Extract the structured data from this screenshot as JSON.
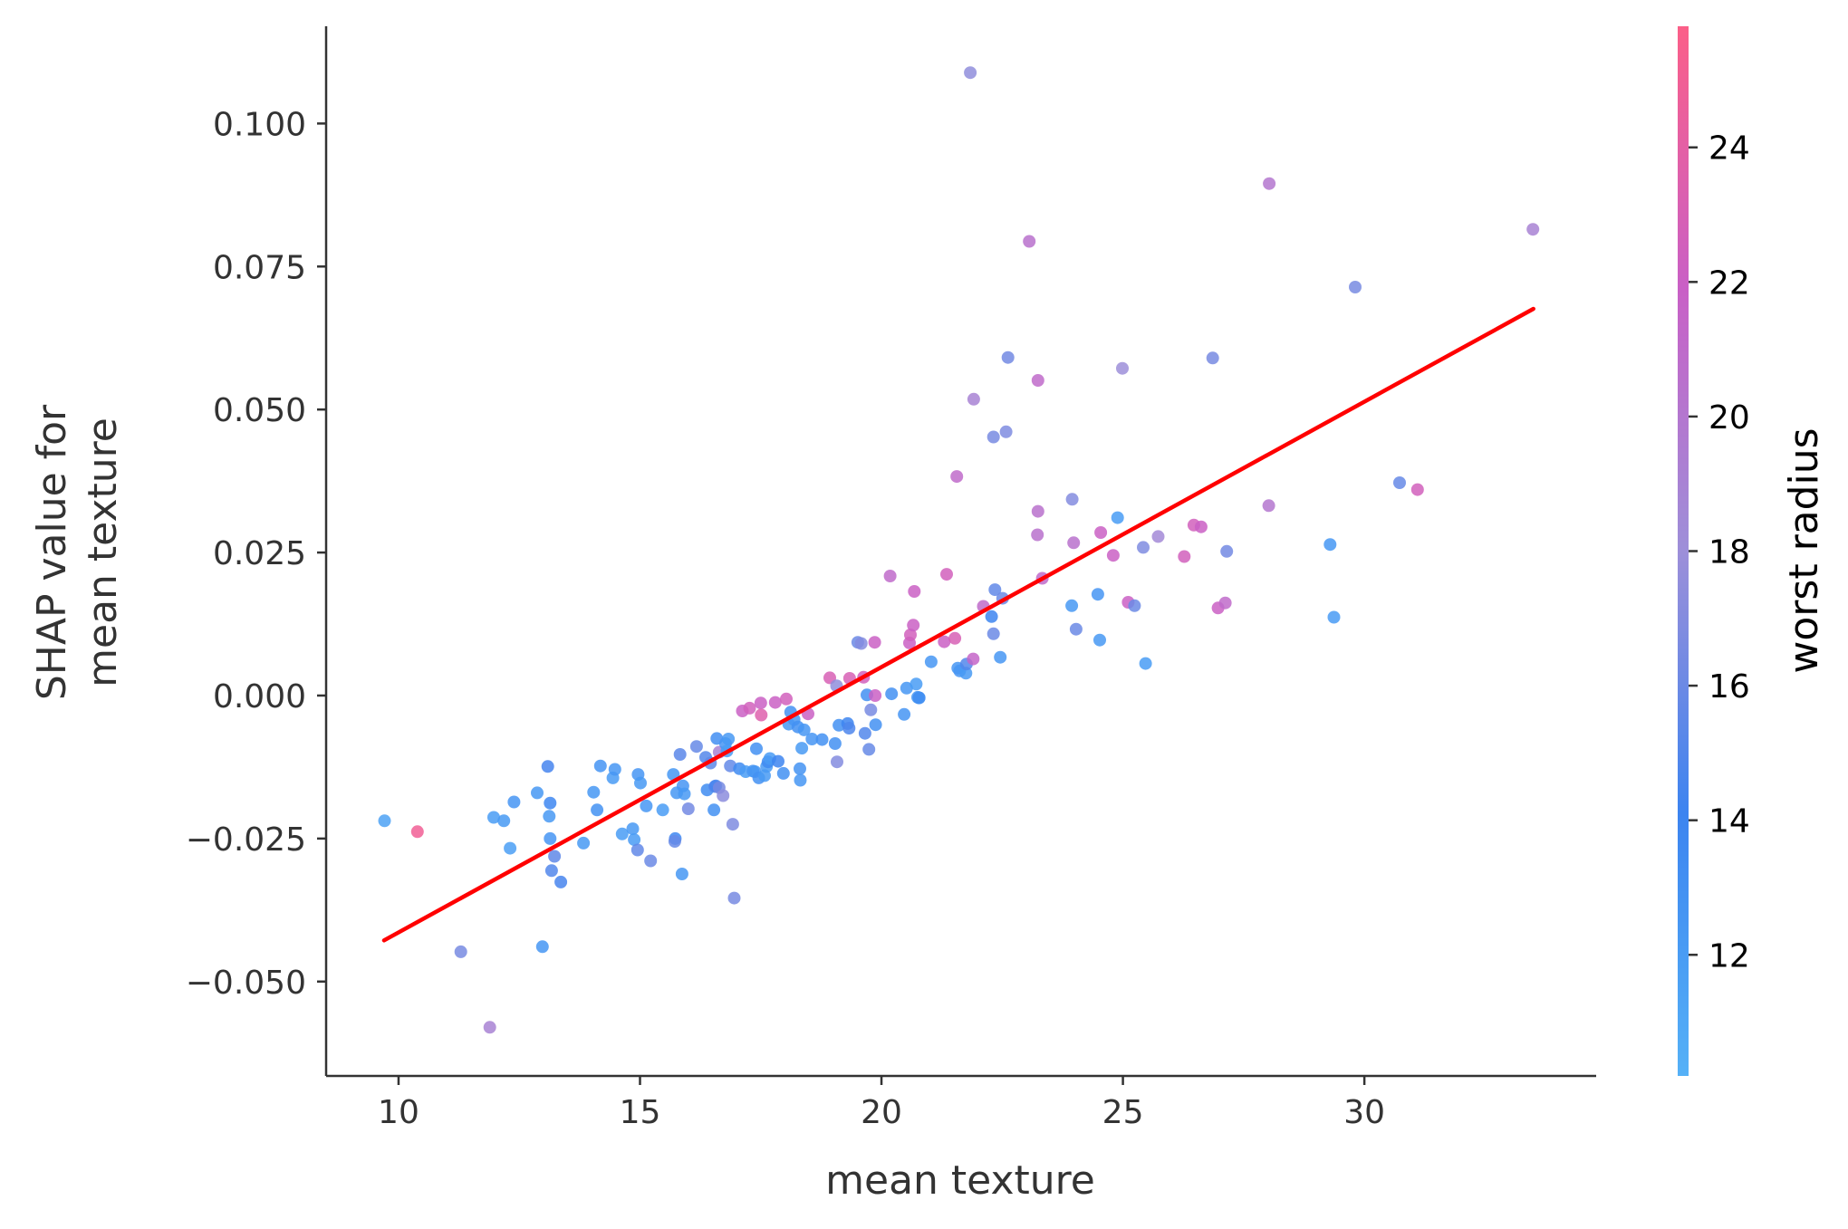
{
  "chart_data": {
    "type": "scatter",
    "xlabel": "mean texture",
    "ylabel_lines": [
      "SHAP value for",
      "mean texture"
    ],
    "colorbar_label": "worst radius",
    "xlim": [
      8.5,
      34.8
    ],
    "ylim": [
      -0.0665,
      0.117
    ],
    "xticks": [
      10,
      15,
      20,
      25,
      30
    ],
    "xtick_labels": [
      "10",
      "15",
      "20",
      "25",
      "30"
    ],
    "yticks": [
      -0.05,
      -0.025,
      0.0,
      0.025,
      0.05,
      0.075,
      0.1
    ],
    "ytick_labels": [
      "−0.050",
      "−0.025",
      "0.000",
      "0.025",
      "0.050",
      "0.075",
      "0.100"
    ],
    "colorbar_range": [
      10.2,
      25.8
    ],
    "colorbar_ticks": [
      12,
      14,
      16,
      18,
      20,
      22,
      24
    ],
    "colorbar_tick_labels": [
      "12",
      "14",
      "16",
      "18",
      "20",
      "22",
      "24"
    ],
    "colormap": [
      "#55b1f7",
      "#3c84f0",
      "#9d8fd9",
      "#c960c6",
      "#fb5f88"
    ],
    "trend_line": {
      "x": [
        9.7,
        33.5
      ],
      "y": [
        -0.0428,
        0.0676
      ],
      "color": "#ff0000"
    },
    "points": [
      [
        9.71,
        -0.0219,
        11.5
      ],
      [
        10.39,
        -0.0238,
        25.0
      ],
      [
        11.29,
        -0.0448,
        16.5
      ],
      [
        11.89,
        -0.058,
        19.0
      ],
      [
        11.97,
        -0.0213,
        12.0
      ],
      [
        12.18,
        -0.0219,
        12.2
      ],
      [
        12.39,
        -0.0186,
        12.6
      ],
      [
        12.31,
        -0.0267,
        11.8
      ],
      [
        12.87,
        -0.017,
        12.4
      ],
      [
        13.09,
        -0.0124,
        14.5
      ],
      [
        13.12,
        -0.0211,
        12.3
      ],
      [
        13.14,
        -0.0188,
        13.8
      ],
      [
        13.14,
        -0.025,
        12.6
      ],
      [
        12.98,
        -0.0439,
        12.5
      ],
      [
        13.23,
        -0.0281,
        15.5
      ],
      [
        13.17,
        -0.0306,
        15.0
      ],
      [
        13.36,
        -0.0326,
        14.6
      ],
      [
        13.83,
        -0.0258,
        12.2
      ],
      [
        14.04,
        -0.0169,
        12.4
      ],
      [
        14.11,
        -0.02,
        12.9
      ],
      [
        14.18,
        -0.0123,
        12.7
      ],
      [
        14.44,
        -0.0144,
        12.1
      ],
      [
        14.48,
        -0.0129,
        12.5
      ],
      [
        14.63,
        -0.0242,
        12.0
      ],
      [
        14.85,
        -0.0233,
        12.3
      ],
      [
        14.88,
        -0.0252,
        12.1
      ],
      [
        14.96,
        -0.0138,
        12.6
      ],
      [
        15.01,
        -0.0153,
        12.3
      ],
      [
        15.13,
        -0.0193,
        12.5
      ],
      [
        14.95,
        -0.027,
        15.6
      ],
      [
        15.22,
        -0.0289,
        16.0
      ],
      [
        15.47,
        -0.02,
        12.0
      ],
      [
        15.69,
        -0.0138,
        12.4
      ],
      [
        15.73,
        -0.025,
        13.8
      ],
      [
        15.72,
        -0.0255,
        15.8
      ],
      [
        15.76,
        -0.017,
        12.4
      ],
      [
        15.83,
        -0.0103,
        15.3
      ],
      [
        15.89,
        -0.0158,
        12.6
      ],
      [
        15.92,
        -0.0172,
        12.3
      ],
      [
        15.87,
        -0.0312,
        12.4
      ],
      [
        16.0,
        -0.0198,
        16.3
      ],
      [
        16.17,
        -0.0089,
        15.8
      ],
      [
        16.36,
        -0.0108,
        15.1
      ],
      [
        16.39,
        -0.0165,
        13.4
      ],
      [
        16.46,
        -0.0118,
        15.5
      ],
      [
        16.53,
        -0.02,
        13.0
      ],
      [
        16.55,
        -0.0159,
        15.0
      ],
      [
        16.59,
        -0.0075,
        13.2
      ],
      [
        16.64,
        -0.0099,
        19.0
      ],
      [
        16.57,
        -0.0158,
        14.5
      ],
      [
        16.64,
        -0.0161,
        16.4
      ],
      [
        16.72,
        -0.0175,
        17.3
      ],
      [
        16.77,
        -0.0084,
        12.6
      ],
      [
        16.8,
        -0.0097,
        12.0
      ],
      [
        16.83,
        -0.0076,
        12.3
      ],
      [
        16.87,
        -0.0123,
        15.7
      ],
      [
        16.92,
        -0.0225,
        16.8
      ],
      [
        16.95,
        -0.0354,
        16.5
      ],
      [
        17.06,
        -0.0128,
        13.5
      ],
      [
        17.12,
        -0.0027,
        22.0
      ],
      [
        17.19,
        -0.0133,
        12.0
      ],
      [
        17.27,
        -0.0022,
        22.5
      ],
      [
        17.34,
        -0.0132,
        12.6
      ],
      [
        17.38,
        -0.0133,
        12.5
      ],
      [
        17.41,
        -0.0093,
        13.0
      ],
      [
        17.46,
        -0.0144,
        13.0
      ],
      [
        17.5,
        -0.0013,
        22.0
      ],
      [
        17.51,
        -0.0034,
        23.5
      ],
      [
        17.58,
        -0.014,
        12.2
      ],
      [
        17.62,
        -0.0124,
        12.2
      ],
      [
        17.65,
        -0.0116,
        13.5
      ],
      [
        17.69,
        -0.011,
        12.1
      ],
      [
        17.8,
        -0.0012,
        22.0
      ],
      [
        17.86,
        -0.0115,
        14.0
      ],
      [
        17.97,
        -0.0136,
        13.0
      ],
      [
        18.03,
        -0.0006,
        22.5
      ],
      [
        18.08,
        -0.005,
        12.3
      ],
      [
        18.12,
        -0.0029,
        12.9
      ],
      [
        18.19,
        -0.0042,
        12.6
      ],
      [
        18.27,
        -0.0055,
        13.0
      ],
      [
        18.31,
        -0.0128,
        12.8
      ],
      [
        18.32,
        -0.0148,
        12.5
      ],
      [
        18.35,
        -0.0092,
        12.2
      ],
      [
        18.4,
        -0.006,
        12.5
      ],
      [
        18.48,
        -0.0032,
        22.0
      ],
      [
        18.56,
        -0.0076,
        12.6
      ],
      [
        18.77,
        -0.0077,
        13.0
      ],
      [
        18.93,
        0.0031,
        23.0
      ],
      [
        19.04,
        -0.0084,
        13.0
      ],
      [
        19.07,
        0.0017,
        17.5
      ],
      [
        19.08,
        -0.0116,
        17.0
      ],
      [
        19.12,
        -0.0052,
        13.0
      ],
      [
        19.3,
        -0.0049,
        14.0
      ],
      [
        19.34,
        0.003,
        23.0
      ],
      [
        19.33,
        -0.0057,
        14.8
      ],
      [
        19.51,
        0.0093,
        16.0
      ],
      [
        19.58,
        0.0091,
        17.0
      ],
      [
        19.63,
        0.0032,
        22.5
      ],
      [
        19.66,
        -0.0066,
        15.0
      ],
      [
        19.7,
        0.0001,
        13.0
      ],
      [
        19.74,
        -0.0094,
        15.8
      ],
      [
        19.78,
        -0.0025,
        16.5
      ],
      [
        19.86,
        0.0093,
        22.0
      ],
      [
        19.88,
        -0.0051,
        13.0
      ],
      [
        19.87,
        0.0,
        22.0
      ],
      [
        20.18,
        0.0209,
        21.0
      ],
      [
        20.21,
        0.0003,
        13.0
      ],
      [
        20.47,
        -0.0033,
        12.6
      ],
      [
        20.52,
        0.0013,
        12.5
      ],
      [
        20.58,
        0.0092,
        22.0
      ],
      [
        20.6,
        0.0106,
        22.5
      ],
      [
        20.66,
        0.0123,
        22.0
      ],
      [
        20.68,
        0.0182,
        22.0
      ],
      [
        20.72,
        0.002,
        12.0
      ],
      [
        20.75,
        -0.0003,
        12.3
      ],
      [
        20.78,
        -0.0004,
        13.4
      ],
      [
        20.78,
        -0.0004,
        13.0
      ],
      [
        21.03,
        0.0059,
        12.5
      ],
      [
        21.3,
        0.0094,
        22.0
      ],
      [
        21.35,
        0.0212,
        22.5
      ],
      [
        21.52,
        0.01,
        23.0
      ],
      [
        21.56,
        0.0383,
        21.0
      ],
      [
        21.58,
        0.0048,
        12.5
      ],
      [
        21.62,
        0.0043,
        12.6
      ],
      [
        21.75,
        0.0039,
        12.2
      ],
      [
        21.76,
        0.0055,
        15.0
      ],
      [
        21.84,
        0.1089,
        17.5
      ],
      [
        21.9,
        0.0064,
        21.5
      ],
      [
        21.91,
        0.0518,
        19.0
      ],
      [
        22.11,
        0.0156,
        21.0
      ],
      [
        22.28,
        0.0138,
        14.0
      ],
      [
        22.32,
        0.0452,
        16.5
      ],
      [
        22.32,
        0.0108,
        16.0
      ],
      [
        22.35,
        0.0185,
        15.6
      ],
      [
        22.46,
        0.0067,
        12.5
      ],
      [
        22.51,
        0.017,
        16.0
      ],
      [
        22.58,
        0.0461,
        16.8
      ],
      [
        22.62,
        0.0591,
        16.3
      ],
      [
        23.06,
        0.0794,
        20.5
      ],
      [
        23.24,
        0.0551,
        21.0
      ],
      [
        23.23,
        0.0281,
        20.5
      ],
      [
        23.24,
        0.0322,
        20.5
      ],
      [
        23.33,
        0.0205,
        21.0
      ],
      [
        23.94,
        0.0157,
        12.3
      ],
      [
        23.95,
        0.0343,
        17.0
      ],
      [
        23.98,
        0.0267,
        20.5
      ],
      [
        24.03,
        0.0116,
        16.0
      ],
      [
        24.48,
        0.0177,
        12.6
      ],
      [
        24.52,
        0.0097,
        12.3
      ],
      [
        24.54,
        0.0285,
        22.0
      ],
      [
        24.8,
        0.0245,
        22.0
      ],
      [
        24.89,
        0.0311,
        12.0
      ],
      [
        24.99,
        0.0572,
        18.0
      ],
      [
        25.11,
        0.0163,
        22.0
      ],
      [
        25.24,
        0.0157,
        16.0
      ],
      [
        25.42,
        0.0259,
        16.8
      ],
      [
        25.47,
        0.0056,
        12.0
      ],
      [
        25.73,
        0.0278,
        18.5
      ],
      [
        26.27,
        0.0243,
        22.5
      ],
      [
        26.47,
        0.0298,
        22.5
      ],
      [
        26.62,
        0.0295,
        22.0
      ],
      [
        26.86,
        0.059,
        16.5
      ],
      [
        26.97,
        0.0153,
        22.0
      ],
      [
        27.12,
        0.0162,
        21.0
      ],
      [
        27.15,
        0.0252,
        16.3
      ],
      [
        28.03,
        0.0895,
        20.0
      ],
      [
        28.02,
        0.0332,
        20.0
      ],
      [
        29.29,
        0.0264,
        12.4
      ],
      [
        29.37,
        0.0137,
        12.1
      ],
      [
        29.81,
        0.0714,
        16.5
      ],
      [
        30.73,
        0.0372,
        15.8
      ],
      [
        31.1,
        0.036,
        22.5
      ],
      [
        33.49,
        0.0815,
        19.0
      ]
    ]
  }
}
